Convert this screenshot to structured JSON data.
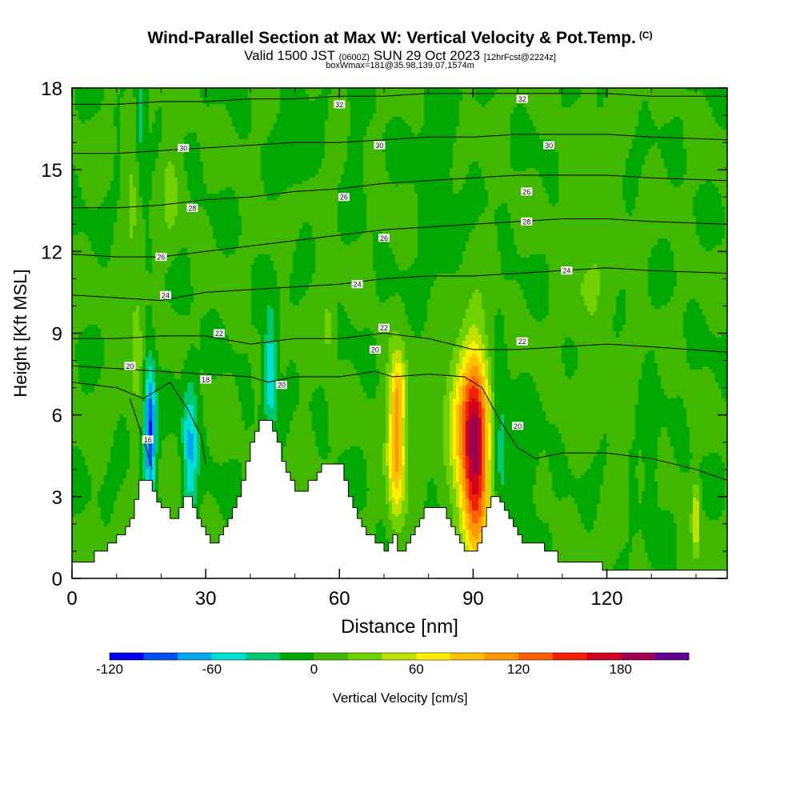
{
  "titles": {
    "main": "Wind-Parallel Section at Max W: Vertical Velocity & Pot.Temp.",
    "copyright": "(C)",
    "valid_prefix": "Valid 1500 JST",
    "valid_utc": "(0600Z)",
    "valid_date": "SUN 29 Oct 2023",
    "fcst": "[12hrFcst@2224z]",
    "box": "boxWmax=181@35.98,139.07,1574m"
  },
  "chart_data": {
    "type": "heatmap",
    "xlabel": "Distance [nm]",
    "ylabel": "Height [Kft MSL]",
    "xlim": [
      0,
      147
    ],
    "ylim": [
      0,
      18
    ],
    "x_ticks": [
      0,
      30,
      60,
      90,
      120
    ],
    "y_ticks": [
      0,
      3,
      6,
      9,
      12,
      15,
      18
    ],
    "colorbar": {
      "label": "Vertical Velocity [cm/s]",
      "tick_labels": [
        -120,
        -60,
        0,
        60,
        120,
        180
      ],
      "levels": [
        -120,
        -100,
        -80,
        -60,
        -40,
        -20,
        0,
        20,
        40,
        60,
        80,
        100,
        120,
        140,
        160,
        180,
        200
      ],
      "colors": [
        "#0000ee",
        "#0050f0",
        "#00a8f0",
        "#00e0d0",
        "#00c870",
        "#00a800",
        "#40b800",
        "#70d000",
        "#c0e000",
        "#ffee00",
        "#ffc000",
        "#ff9800",
        "#ff6000",
        "#f02000",
        "#d00020",
        "#a00050",
        "#600090"
      ]
    },
    "terrain_kft": [
      [
        0,
        0.6
      ],
      [
        3,
        0.6
      ],
      [
        5,
        1.0
      ],
      [
        7,
        1.0
      ],
      [
        8,
        1.3
      ],
      [
        9,
        1.3
      ],
      [
        10,
        1.6
      ],
      [
        11,
        1.6
      ],
      [
        12,
        1.9
      ],
      [
        13,
        2.2
      ],
      [
        14,
        2.9
      ],
      [
        15,
        3.6
      ],
      [
        17,
        3.6
      ],
      [
        18,
        3.2
      ],
      [
        19,
        2.8
      ],
      [
        20,
        2.6
      ],
      [
        21,
        2.6
      ],
      [
        22,
        2.2
      ],
      [
        23,
        2.2
      ],
      [
        24,
        2.6
      ],
      [
        25,
        3.0
      ],
      [
        26,
        3.0
      ],
      [
        27,
        2.6
      ],
      [
        28,
        2.2
      ],
      [
        29,
        1.9
      ],
      [
        30,
        1.6
      ],
      [
        31,
        1.3
      ],
      [
        32,
        1.3
      ],
      [
        33,
        1.6
      ],
      [
        34,
        1.9
      ],
      [
        35,
        2.2
      ],
      [
        36,
        2.6
      ],
      [
        37,
        3.0
      ],
      [
        38,
        3.6
      ],
      [
        39,
        4.3
      ],
      [
        40,
        5.0
      ],
      [
        41,
        5.4
      ],
      [
        42,
        5.8
      ],
      [
        44,
        5.8
      ],
      [
        45,
        5.4
      ],
      [
        46,
        5.0
      ],
      [
        47,
        4.3
      ],
      [
        48,
        3.9
      ],
      [
        49,
        3.6
      ],
      [
        50,
        3.2
      ],
      [
        52,
        3.2
      ],
      [
        53,
        3.6
      ],
      [
        55,
        3.9
      ],
      [
        56,
        4.2
      ],
      [
        60,
        4.2
      ],
      [
        61,
        3.6
      ],
      [
        62,
        3.0
      ],
      [
        63,
        2.6
      ],
      [
        64,
        2.2
      ],
      [
        65,
        1.9
      ],
      [
        66,
        1.6
      ],
      [
        67,
        1.6
      ],
      [
        68,
        1.3
      ],
      [
        69,
        1.3
      ],
      [
        70,
        1.0
      ],
      [
        71,
        1.3
      ],
      [
        72,
        1.6
      ],
      [
        73,
        1.0
      ],
      [
        74,
        1.0
      ],
      [
        75,
        1.3
      ],
      [
        76,
        1.6
      ],
      [
        77,
        1.9
      ],
      [
        78,
        2.2
      ],
      [
        79,
        2.6
      ],
      [
        83,
        2.6
      ],
      [
        84,
        2.2
      ],
      [
        85,
        1.9
      ],
      [
        86,
        1.6
      ],
      [
        87,
        1.3
      ],
      [
        88,
        1.0
      ],
      [
        90,
        1.0
      ],
      [
        91,
        1.3
      ],
      [
        92,
        1.9
      ],
      [
        93,
        2.6
      ],
      [
        94,
        3.0
      ],
      [
        95,
        3.0
      ],
      [
        96,
        2.8
      ],
      [
        97,
        2.5
      ],
      [
        98,
        2.2
      ],
      [
        99,
        1.9
      ],
      [
        100,
        1.6
      ],
      [
        101,
        1.3
      ],
      [
        105,
        1.3
      ],
      [
        106,
        1.0
      ],
      [
        108,
        1.0
      ],
      [
        109,
        0.6
      ],
      [
        119,
        0.6
      ],
      [
        119,
        0.3
      ],
      [
        147,
        0.3
      ]
    ],
    "theta_contours": [
      {
        "label": "16",
        "pts": [
          [
            13,
            6.6
          ],
          [
            15,
            5.6
          ],
          [
            17,
            4.6
          ],
          [
            18,
            4.0
          ]
        ]
      },
      {
        "label": "18",
        "pts": [
          [
            0,
            7.2
          ],
          [
            10,
            7.0
          ],
          [
            16,
            6.6
          ],
          [
            22,
            7.2
          ],
          [
            26,
            6.2
          ],
          [
            29,
            5.2
          ],
          [
            30,
            4.2
          ]
        ]
      },
      {
        "label": "20",
        "pts": [
          [
            0,
            7.8
          ],
          [
            10,
            7.7
          ],
          [
            20,
            7.6
          ],
          [
            30,
            7.5
          ],
          [
            40,
            7.4
          ],
          [
            44,
            7.2
          ],
          [
            50,
            7.4
          ],
          [
            60,
            7.4
          ],
          [
            68,
            7.6
          ],
          [
            72,
            7.4
          ],
          [
            80,
            7.5
          ],
          [
            88,
            7.4
          ],
          [
            92,
            7.0
          ],
          [
            96,
            5.8
          ],
          [
            100,
            4.8
          ],
          [
            104,
            4.4
          ],
          [
            110,
            4.6
          ],
          [
            120,
            4.6
          ],
          [
            130,
            4.4
          ],
          [
            140,
            4.0
          ],
          [
            147,
            3.6
          ]
        ]
      },
      {
        "label": "22",
        "pts": [
          [
            0,
            8.8
          ],
          [
            10,
            8.8
          ],
          [
            20,
            8.9
          ],
          [
            30,
            8.9
          ],
          [
            40,
            8.6
          ],
          [
            50,
            8.8
          ],
          [
            60,
            8.8
          ],
          [
            70,
            9.0
          ],
          [
            80,
            8.8
          ],
          [
            90,
            8.4
          ],
          [
            100,
            8.4
          ],
          [
            110,
            8.5
          ],
          [
            120,
            8.6
          ],
          [
            130,
            8.5
          ],
          [
            147,
            8.3
          ]
        ]
      },
      {
        "label": "24",
        "pts": [
          [
            0,
            10.4
          ],
          [
            10,
            10.3
          ],
          [
            20,
            10.2
          ],
          [
            30,
            10.5
          ],
          [
            40,
            10.6
          ],
          [
            50,
            10.7
          ],
          [
            60,
            10.8
          ],
          [
            70,
            11.0
          ],
          [
            80,
            11.1
          ],
          [
            90,
            11.1
          ],
          [
            100,
            11.2
          ],
          [
            110,
            11.3
          ],
          [
            120,
            11.4
          ],
          [
            130,
            11.3
          ],
          [
            147,
            11.2
          ]
        ]
      },
      {
        "label": "26",
        "pts": [
          [
            0,
            11.9
          ],
          [
            10,
            11.8
          ],
          [
            20,
            11.8
          ],
          [
            30,
            12.0
          ],
          [
            40,
            12.2
          ],
          [
            50,
            12.4
          ],
          [
            60,
            12.6
          ],
          [
            70,
            12.8
          ],
          [
            80,
            12.9
          ],
          [
            90,
            13.0
          ],
          [
            100,
            13.1
          ],
          [
            110,
            13.2
          ],
          [
            120,
            13.2
          ],
          [
            130,
            13.1
          ],
          [
            147,
            13.0
          ]
        ]
      },
      {
        "label": "28",
        "pts": [
          [
            0,
            13.6
          ],
          [
            10,
            13.6
          ],
          [
            20,
            13.7
          ],
          [
            30,
            13.9
          ],
          [
            40,
            14.0
          ],
          [
            50,
            14.2
          ],
          [
            60,
            14.3
          ],
          [
            70,
            14.5
          ],
          [
            80,
            14.6
          ],
          [
            90,
            14.7
          ],
          [
            100,
            14.8
          ],
          [
            110,
            14.8
          ],
          [
            120,
            14.8
          ],
          [
            130,
            14.7
          ],
          [
            147,
            14.6
          ]
        ]
      },
      {
        "label": "30",
        "pts": [
          [
            0,
            15.6
          ],
          [
            10,
            15.6
          ],
          [
            20,
            15.7
          ],
          [
            30,
            15.8
          ],
          [
            40,
            15.9
          ],
          [
            50,
            16.0
          ],
          [
            60,
            16.0
          ],
          [
            70,
            16.1
          ],
          [
            80,
            16.2
          ],
          [
            90,
            16.2
          ],
          [
            100,
            16.3
          ],
          [
            110,
            16.3
          ],
          [
            120,
            16.3
          ],
          [
            130,
            16.2
          ],
          [
            147,
            16.1
          ]
        ]
      },
      {
        "label": "32",
        "pts": [
          [
            0,
            17.4
          ],
          [
            10,
            17.4
          ],
          [
            20,
            17.5
          ],
          [
            30,
            17.5
          ],
          [
            40,
            17.6
          ],
          [
            50,
            17.6
          ],
          [
            60,
            17.7
          ],
          [
            70,
            17.7
          ],
          [
            80,
            17.8
          ],
          [
            90,
            17.8
          ],
          [
            100,
            17.8
          ],
          [
            110,
            17.8
          ],
          [
            120,
            17.8
          ],
          [
            130,
            17.7
          ],
          [
            147,
            17.7
          ]
        ]
      }
    ],
    "theta_labels": [
      {
        "text": "16",
        "x": 17,
        "y": 5.1
      },
      {
        "text": "18",
        "x": 30,
        "y": 7.3
      },
      {
        "text": "20",
        "x": 13,
        "y": 7.8
      },
      {
        "text": "20",
        "x": 47,
        "y": 7.1
      },
      {
        "text": "20",
        "x": 68,
        "y": 8.4
      },
      {
        "text": "20",
        "x": 100,
        "y": 5.6
      },
      {
        "text": "22",
        "x": 33,
        "y": 9.0
      },
      {
        "text": "22",
        "x": 70,
        "y": 9.2
      },
      {
        "text": "22",
        "x": 101,
        "y": 8.7
      },
      {
        "text": "24",
        "x": 21,
        "y": 10.4
      },
      {
        "text": "24",
        "x": 64,
        "y": 10.8
      },
      {
        "text": "24",
        "x": 111,
        "y": 11.3
      },
      {
        "text": "26",
        "x": 20,
        "y": 11.8
      },
      {
        "text": "26",
        "x": 70,
        "y": 12.5
      },
      {
        "text": "26",
        "x": 61,
        "y": 14.0
      },
      {
        "text": "26",
        "x": 102,
        "y": 14.2
      },
      {
        "text": "28",
        "x": 27,
        "y": 13.6
      },
      {
        "text": "28",
        "x": 102,
        "y": 13.1
      },
      {
        "text": "30",
        "x": 25,
        "y": 15.8
      },
      {
        "text": "30",
        "x": 69,
        "y": 15.9
      },
      {
        "text": "30",
        "x": 107,
        "y": 15.9
      },
      {
        "text": "32",
        "x": 60,
        "y": 17.4
      },
      {
        "text": "32",
        "x": 101,
        "y": 17.6
      }
    ],
    "w_features": [
      {
        "x": 90.5,
        "y": 4.6,
        "sx": 2.2,
        "sy": 2.6,
        "amp": 190
      },
      {
        "x": 72.8,
        "y": 5.0,
        "sx": 1.4,
        "sy": 1.9,
        "amp": 112
      },
      {
        "x": 73.5,
        "y": 7.0,
        "sx": 1.0,
        "sy": 0.8,
        "amp": 40
      },
      {
        "x": 86.5,
        "y": 5.8,
        "sx": 2.4,
        "sy": 1.8,
        "amp": 50
      },
      {
        "x": 17.5,
        "y": 5.4,
        "sx": 0.9,
        "sy": 1.8,
        "amp": -105
      },
      {
        "x": 26.5,
        "y": 4.8,
        "sx": 1.2,
        "sy": 1.8,
        "amp": -65
      },
      {
        "x": 44.5,
        "y": 7.6,
        "sx": 1.0,
        "sy": 1.6,
        "amp": -62
      },
      {
        "x": 96.0,
        "y": 5.0,
        "sx": 1.2,
        "sy": 2.0,
        "amp": -38
      },
      {
        "x": 102.0,
        "y": 4.0,
        "sx": 1.8,
        "sy": 1.4,
        "amp": -22
      },
      {
        "x": 14.5,
        "y": 8.6,
        "sx": 1.0,
        "sy": 1.5,
        "amp": 35
      },
      {
        "x": 57.5,
        "y": 9.2,
        "sx": 1.0,
        "sy": 0.8,
        "amp": 30
      },
      {
        "x": 15.5,
        "y": 17.0,
        "sx": 0.8,
        "sy": 1.4,
        "amp": -35
      },
      {
        "x": 13.5,
        "y": 14.0,
        "sx": 1.0,
        "sy": 1.5,
        "amp": 22
      },
      {
        "x": 22.0,
        "y": 14.5,
        "sx": 1.5,
        "sy": 1.5,
        "amp": 22
      },
      {
        "x": 63.5,
        "y": 15.5,
        "sx": 1.4,
        "sy": 1.0,
        "amp": -18
      },
      {
        "x": 50.0,
        "y": 16.5,
        "sx": 2.0,
        "sy": 1.5,
        "amp": -16
      },
      {
        "x": 130.0,
        "y": 4.5,
        "sx": 1.0,
        "sy": 2.0,
        "amp": -20
      },
      {
        "x": 116.0,
        "y": 12.0,
        "sx": 3.5,
        "sy": 3.0,
        "amp": 18
      },
      {
        "x": 82.0,
        "y": 15.0,
        "sx": 3.0,
        "sy": 3.0,
        "amp": -14
      },
      {
        "x": 140.0,
        "y": 2.2,
        "sx": 0.6,
        "sy": 0.9,
        "amp": 62
      }
    ]
  }
}
